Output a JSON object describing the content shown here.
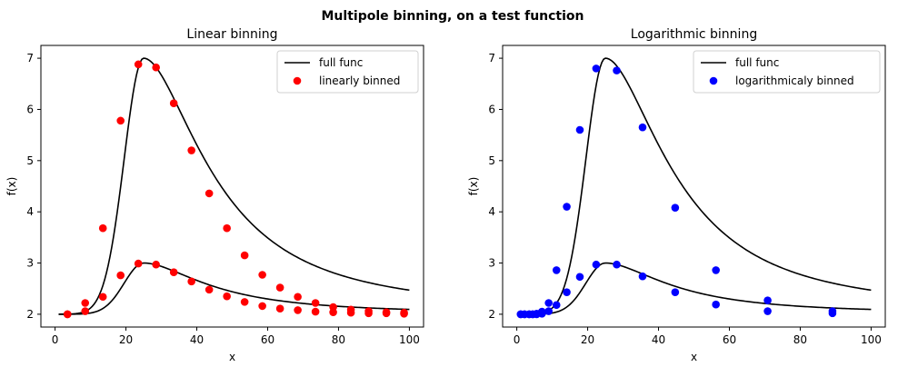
{
  "figure": {
    "suptitle": "Multipole binning, on a test function"
  },
  "chart_data": [
    {
      "type": "scatter",
      "title": "Linear binning",
      "xlabel": "x",
      "ylabel": "f(x)",
      "xlim": [
        -4,
        104
      ],
      "ylim": [
        1.75,
        7.25
      ],
      "xticks": [
        0,
        20,
        40,
        60,
        80,
        100
      ],
      "yticks": [
        2,
        3,
        4,
        5,
        6,
        7
      ],
      "grid": false,
      "legend": "top-right",
      "line_color": "#000000",
      "marker_color": "#ff0000",
      "line_legend": "full func",
      "scatter_legend": "linearly binned",
      "points": {
        "x": [
          3.5,
          8.5,
          13.5,
          18.5,
          23.5,
          28.5,
          33.5,
          38.5,
          43.5,
          48.5,
          53.5,
          58.5,
          63.5,
          68.5,
          73.5,
          78.5,
          83.5,
          88.5,
          93.5,
          98.5,
          3.5,
          8.5,
          13.5,
          18.5,
          23.5,
          28.5,
          33.5,
          38.5,
          43.5,
          48.5,
          53.5,
          58.5,
          63.5,
          68.5,
          73.5,
          78.5,
          83.5,
          88.5,
          93.5,
          98.5
        ],
        "y": [
          2.0,
          2.22,
          3.68,
          5.78,
          6.88,
          6.82,
          6.12,
          5.2,
          4.36,
          3.68,
          3.15,
          2.77,
          2.52,
          2.34,
          2.22,
          2.14,
          2.09,
          2.06,
          2.04,
          2.03,
          2.0,
          2.06,
          2.34,
          2.76,
          2.99,
          2.97,
          2.82,
          2.64,
          2.48,
          2.35,
          2.24,
          2.16,
          2.11,
          2.08,
          2.05,
          2.04,
          2.03,
          2.02,
          2.02,
          2.01
        ]
      }
    },
    {
      "type": "scatter",
      "title": "Logarithmic binning",
      "xlabel": "x",
      "ylabel": "f(x)",
      "xlim": [
        -4,
        104
      ],
      "ylim": [
        1.75,
        7.25
      ],
      "xticks": [
        0,
        20,
        40,
        60,
        80,
        100
      ],
      "yticks": [
        2,
        3,
        4,
        5,
        6,
        7
      ],
      "grid": false,
      "legend": "top-right",
      "line_color": "#000000",
      "marker_color": "#0000ff",
      "line_legend": "full func",
      "scatter_legend": "logarithmicaly binned",
      "points": {
        "x": [
          1.1,
          2.2,
          3.5,
          4.5,
          5.6,
          7.1,
          9.0,
          11.2,
          14.1,
          17.8,
          22.4,
          28.2,
          35.5,
          44.7,
          56.2,
          70.8,
          89.1,
          1.1,
          2.2,
          3.5,
          4.5,
          5.6,
          7.1,
          9.0,
          11.2,
          14.1,
          17.8,
          22.4,
          28.2,
          35.5,
          44.7,
          56.2,
          70.8,
          89.1
        ],
        "y": [
          2.0,
          2.0,
          2.0,
          2.0,
          2.01,
          2.05,
          2.22,
          2.86,
          4.1,
          5.6,
          6.8,
          6.76,
          5.65,
          4.08,
          2.86,
          2.27,
          2.06,
          2.0,
          2.0,
          2.0,
          2.0,
          2.0,
          2.01,
          2.06,
          2.18,
          2.43,
          2.73,
          2.97,
          2.97,
          2.74,
          2.43,
          2.19,
          2.06,
          2.02
        ]
      }
    }
  ]
}
